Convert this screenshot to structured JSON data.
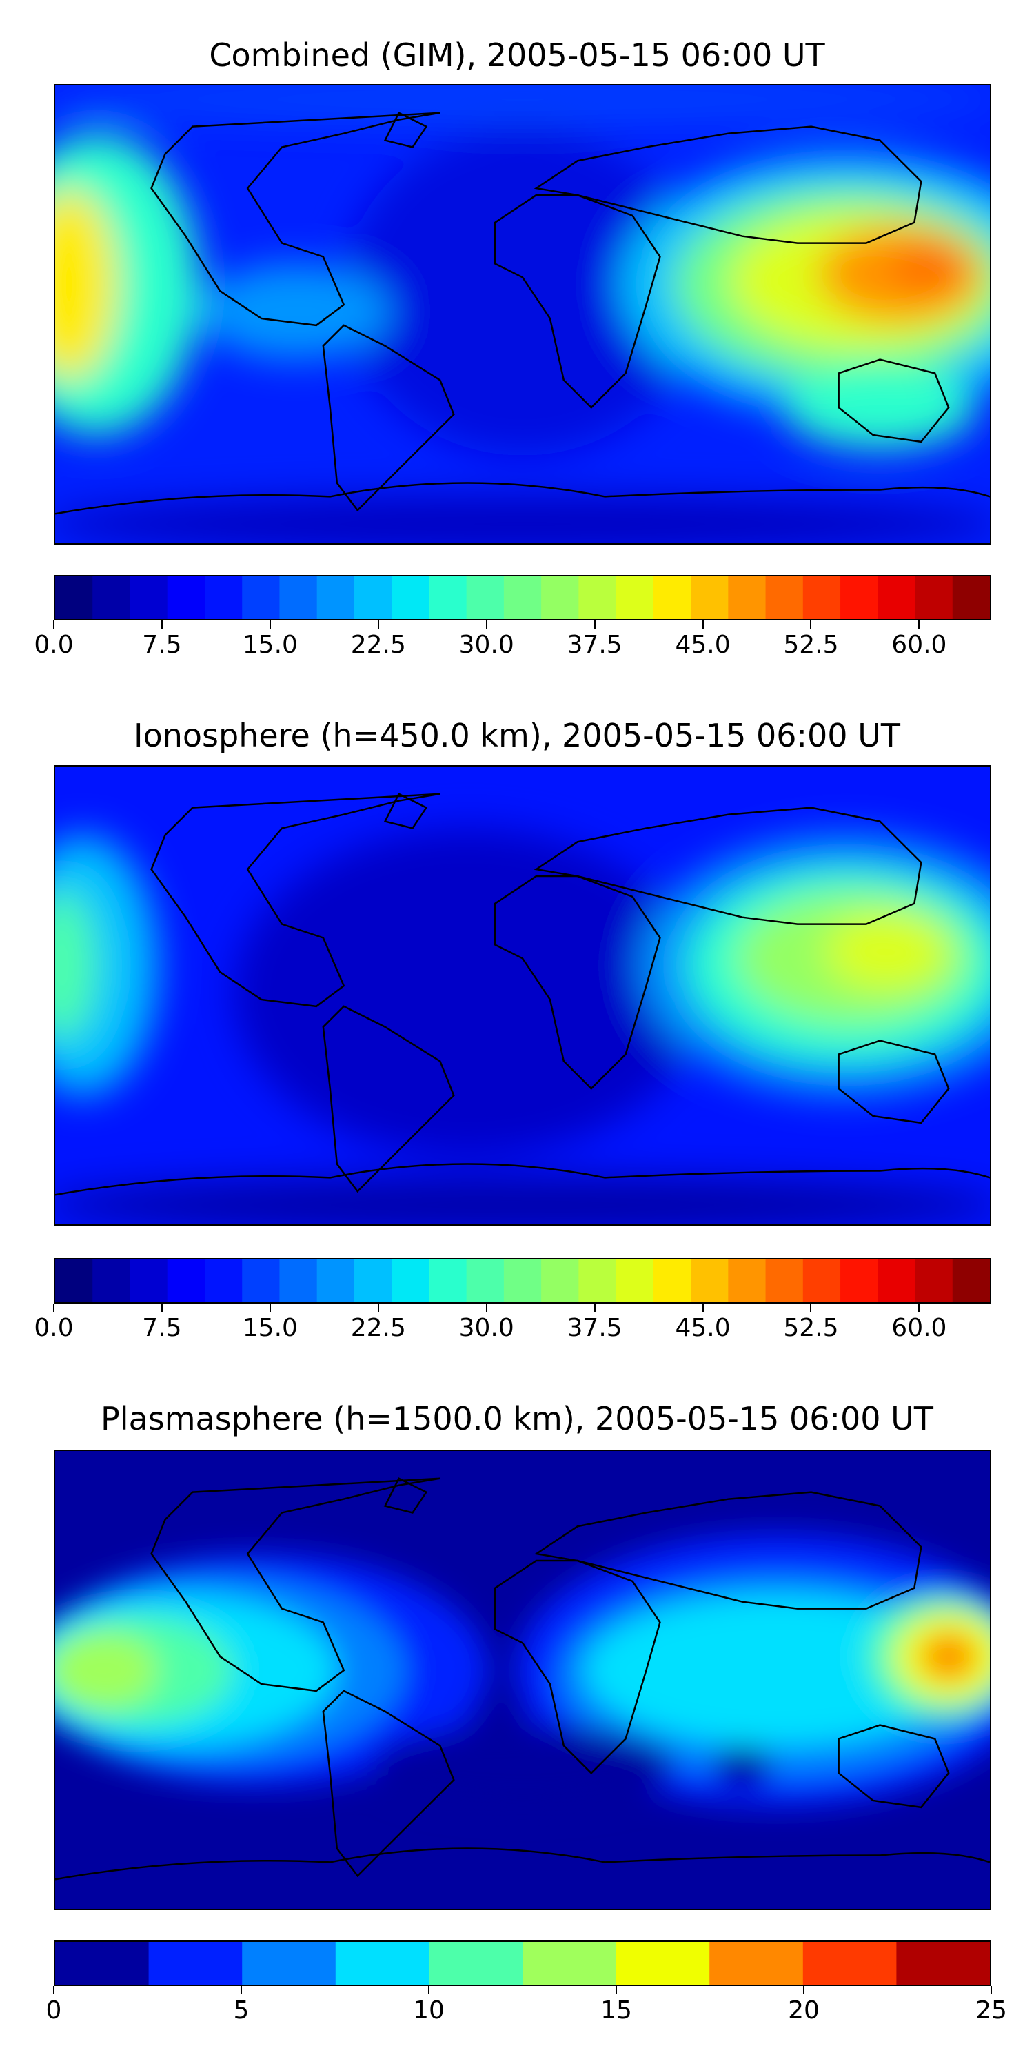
{
  "panels": [
    {
      "title": "Combined (GIM), 2005-05-15 06:00 UT",
      "colorbar": {
        "ticks": [
          "0.0",
          "7.5",
          "15.0",
          "22.5",
          "30.0",
          "37.5",
          "45.0",
          "52.5",
          "60.0"
        ],
        "tick_values": [
          0,
          7.5,
          15,
          22.5,
          30,
          37.5,
          45,
          52.5,
          60
        ],
        "range": [
          0,
          65
        ],
        "colors": [
          "#00007f",
          "#0000a8",
          "#0000d2",
          "#0000fc",
          "#0014ff",
          "#0040ff",
          "#006cff",
          "#0094ff",
          "#00c0ff",
          "#00e8f6",
          "#29ffcd",
          "#4dffaa",
          "#70ff86",
          "#94ff63",
          "#baff3d",
          "#ddff1a",
          "#ffeb00",
          "#ffc100",
          "#ff9500",
          "#ff6a00",
          "#ff3f00",
          "#ff1400",
          "#e80000",
          "#bf0000",
          "#8f0000"
        ]
      }
    },
    {
      "title": "Ionosphere  (h=450.0 km), 2005-05-15 06:00 UT",
      "colorbar": {
        "ticks": [
          "0.0",
          "7.5",
          "15.0",
          "22.5",
          "30.0",
          "37.5",
          "45.0",
          "52.5",
          "60.0"
        ],
        "tick_values": [
          0,
          7.5,
          15,
          22.5,
          30,
          37.5,
          45,
          52.5,
          60
        ],
        "range": [
          0,
          65
        ],
        "colors": [
          "#00007f",
          "#0000a8",
          "#0000d2",
          "#0000fc",
          "#0014ff",
          "#0040ff",
          "#006cff",
          "#0094ff",
          "#00c0ff",
          "#00e8f6",
          "#29ffcd",
          "#4dffaa",
          "#70ff86",
          "#94ff63",
          "#baff3d",
          "#ddff1a",
          "#ffeb00",
          "#ffc100",
          "#ff9500",
          "#ff6a00",
          "#ff3f00",
          "#ff1400",
          "#e80000",
          "#bf0000",
          "#8f0000"
        ]
      }
    },
    {
      "title": "Plasmasphere (h=1500.0 km), 2005-05-15 06:00 UT",
      "colorbar": {
        "ticks": [
          "0",
          "5",
          "10",
          "15",
          "20",
          "25"
        ],
        "tick_values": [
          0,
          5,
          10,
          15,
          20,
          25
        ],
        "range": [
          0,
          25
        ],
        "colors": [
          "#00009f",
          "#0020ff",
          "#0080ff",
          "#00e0ff",
          "#4dffaa",
          "#a0ff5c",
          "#f0ff00",
          "#ff8800",
          "#ff3a00",
          "#b00000"
        ]
      }
    }
  ]
}
